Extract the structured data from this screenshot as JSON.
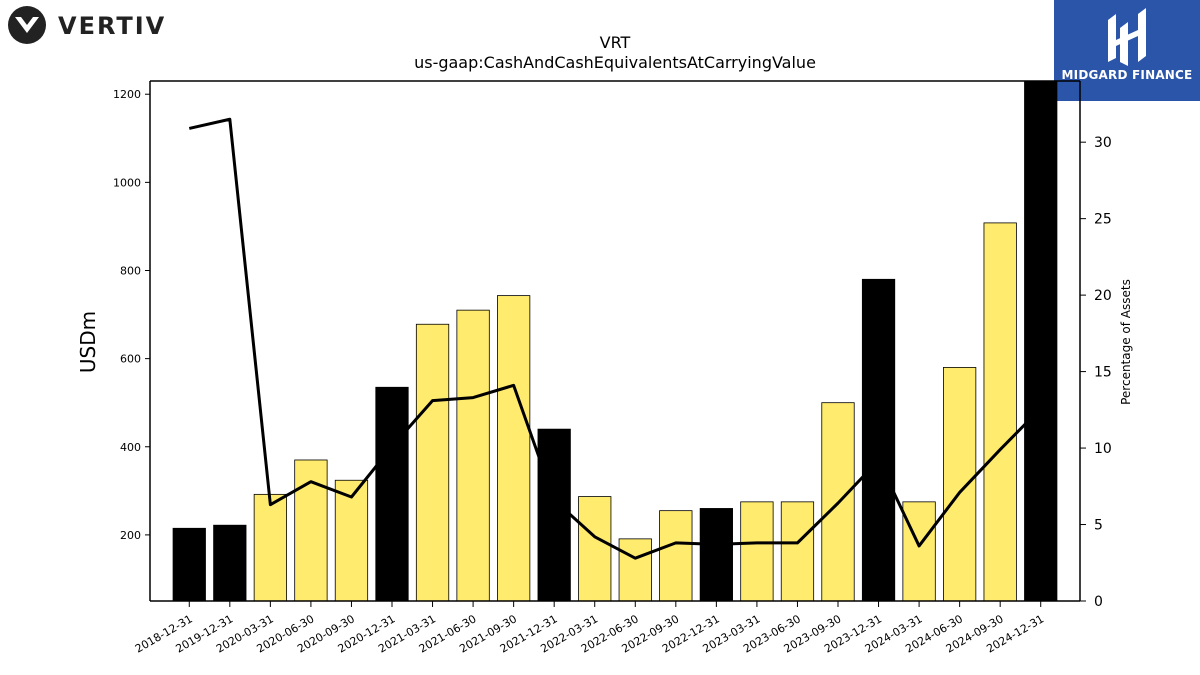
{
  "logos": {
    "left": {
      "text": "VERTIV"
    },
    "right": {
      "text": "MIDGARD FINANCE",
      "background": "#2b55a8"
    }
  },
  "chart_data": {
    "type": "bar",
    "title": "VRT",
    "subtitle": "us-gaap:CashAndCashEquivalentsAtCarryingValue",
    "ylabel": "USDm",
    "y2label": "Percentage of Assets",
    "ylim": [
      50,
      1230
    ],
    "y2lim": [
      0,
      34
    ],
    "yticks": [
      200,
      400,
      600,
      800,
      1000,
      1200
    ],
    "y2ticks": [
      0,
      5,
      10,
      15,
      20,
      25,
      30
    ],
    "grid": false,
    "categories": [
      "2018-12-31",
      "2019-12-31",
      "2020-03-31",
      "2020-06-30",
      "2020-09-30",
      "2020-12-31",
      "2021-03-31",
      "2021-06-30",
      "2021-09-30",
      "2021-12-31",
      "2022-03-31",
      "2022-06-30",
      "2022-09-30",
      "2022-12-31",
      "2023-03-31",
      "2023-06-30",
      "2023-09-30",
      "2023-12-31",
      "2024-03-31",
      "2024-06-30",
      "2024-09-30",
      "2024-12-31"
    ],
    "series": [
      {
        "type": "bar",
        "axis": "left",
        "values": [
          215,
          222,
          292,
          370,
          324,
          535,
          678,
          710,
          743,
          440,
          287,
          191,
          255,
          260,
          275,
          275,
          500,
          780,
          275,
          580,
          908,
          1228
        ],
        "colors": [
          "#000000",
          "#000000",
          "#ffeb6e",
          "#ffeb6e",
          "#ffeb6e",
          "#000000",
          "#ffeb6e",
          "#ffeb6e",
          "#ffeb6e",
          "#000000",
          "#ffeb6e",
          "#ffeb6e",
          "#ffeb6e",
          "#000000",
          "#ffeb6e",
          "#ffeb6e",
          "#ffeb6e",
          "#000000",
          "#ffeb6e",
          "#ffeb6e",
          "#ffeb6e",
          "#000000"
        ]
      },
      {
        "type": "line",
        "axis": "right",
        "color": "#000000",
        "values": [
          30.9,
          31.5,
          6.3,
          7.8,
          6.8,
          10.1,
          13.1,
          13.3,
          14.1,
          6.6,
          4.2,
          2.8,
          3.8,
          3.7,
          3.8,
          3.8,
          6.4,
          9.2,
          3.6,
          7.1,
          9.9,
          12.6
        ]
      }
    ]
  }
}
